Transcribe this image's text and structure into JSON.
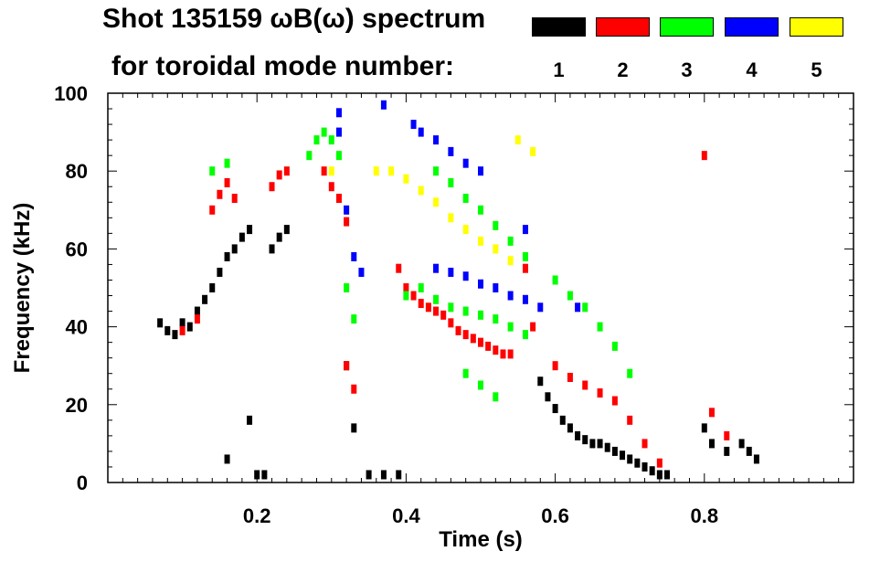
{
  "title_line1": "Shot 135159 ωB(ω) spectrum",
  "title_line2": "for toroidal mode number:",
  "legend": [
    {
      "label": "1",
      "color": "#000000"
    },
    {
      "label": "2",
      "color": "#ff0000"
    },
    {
      "label": "3",
      "color": "#00ff00"
    },
    {
      "label": "4",
      "color": "#0000ff"
    },
    {
      "label": "5",
      "color": "#ffff00"
    }
  ],
  "chart_data": {
    "type": "scatter",
    "title": "Shot 135159 ωB(ω) spectrum for toroidal mode number:",
    "xlabel": "Time (s)",
    "ylabel": "Frequency (kHz)",
    "xlim": [
      0.0,
      1.0
    ],
    "ylim": [
      0,
      100
    ],
    "xticks": [
      0.2,
      0.4,
      0.6,
      0.8
    ],
    "xtick_labels": [
      "0.2",
      "0.4",
      "0.6",
      "0.8"
    ],
    "yticks": [
      0,
      20,
      40,
      60,
      80,
      100
    ],
    "ytick_labels": [
      "0",
      "20",
      "40",
      "60",
      "80",
      "100"
    ],
    "series": [
      {
        "name": "1",
        "color": "#000000",
        "points": [
          [
            0.07,
            41
          ],
          [
            0.08,
            39
          ],
          [
            0.09,
            38
          ],
          [
            0.1,
            41
          ],
          [
            0.11,
            40
          ],
          [
            0.12,
            44
          ],
          [
            0.13,
            47
          ],
          [
            0.14,
            50
          ],
          [
            0.15,
            54
          ],
          [
            0.16,
            58
          ],
          [
            0.17,
            60
          ],
          [
            0.18,
            63
          ],
          [
            0.19,
            65
          ],
          [
            0.2,
            2
          ],
          [
            0.21,
            2
          ],
          [
            0.22,
            60
          ],
          [
            0.23,
            63
          ],
          [
            0.24,
            65
          ],
          [
            0.16,
            6
          ],
          [
            0.19,
            16
          ],
          [
            0.32,
            30
          ],
          [
            0.33,
            14
          ],
          [
            0.35,
            2
          ],
          [
            0.37,
            2
          ],
          [
            0.39,
            2
          ],
          [
            0.58,
            26
          ],
          [
            0.59,
            22
          ],
          [
            0.6,
            19
          ],
          [
            0.61,
            16
          ],
          [
            0.62,
            14
          ],
          [
            0.63,
            12
          ],
          [
            0.64,
            11
          ],
          [
            0.65,
            10
          ],
          [
            0.66,
            10
          ],
          [
            0.67,
            9
          ],
          [
            0.68,
            8
          ],
          [
            0.69,
            7
          ],
          [
            0.7,
            6
          ],
          [
            0.71,
            5
          ],
          [
            0.72,
            4
          ],
          [
            0.73,
            3
          ],
          [
            0.74,
            2
          ],
          [
            0.75,
            2
          ],
          [
            0.8,
            14
          ],
          [
            0.81,
            10
          ],
          [
            0.83,
            8
          ],
          [
            0.85,
            10
          ],
          [
            0.86,
            8
          ],
          [
            0.87,
            6
          ]
        ]
      },
      {
        "name": "2",
        "color": "#ff0000",
        "points": [
          [
            0.1,
            39
          ],
          [
            0.12,
            42
          ],
          [
            0.14,
            70
          ],
          [
            0.15,
            74
          ],
          [
            0.16,
            77
          ],
          [
            0.17,
            73
          ],
          [
            0.22,
            76
          ],
          [
            0.23,
            79
          ],
          [
            0.24,
            80
          ],
          [
            0.29,
            80
          ],
          [
            0.3,
            76
          ],
          [
            0.31,
            73
          ],
          [
            0.32,
            67
          ],
          [
            0.32,
            30
          ],
          [
            0.33,
            24
          ],
          [
            0.39,
            55
          ],
          [
            0.4,
            50
          ],
          [
            0.41,
            48
          ],
          [
            0.42,
            46
          ],
          [
            0.43,
            45
          ],
          [
            0.44,
            44
          ],
          [
            0.45,
            43
          ],
          [
            0.46,
            41
          ],
          [
            0.47,
            39
          ],
          [
            0.48,
            38
          ],
          [
            0.49,
            37
          ],
          [
            0.5,
            36
          ],
          [
            0.51,
            35
          ],
          [
            0.52,
            34
          ],
          [
            0.53,
            33
          ],
          [
            0.54,
            33
          ],
          [
            0.56,
            55
          ],
          [
            0.57,
            40
          ],
          [
            0.6,
            30
          ],
          [
            0.62,
            27
          ],
          [
            0.64,
            25
          ],
          [
            0.66,
            23
          ],
          [
            0.68,
            21
          ],
          [
            0.7,
            16
          ],
          [
            0.72,
            10
          ],
          [
            0.74,
            5
          ],
          [
            0.8,
            84
          ],
          [
            0.81,
            18
          ],
          [
            0.83,
            12
          ]
        ]
      },
      {
        "name": "3",
        "color": "#00ff00",
        "points": [
          [
            0.14,
            80
          ],
          [
            0.16,
            82
          ],
          [
            0.27,
            84
          ],
          [
            0.28,
            88
          ],
          [
            0.29,
            90
          ],
          [
            0.3,
            88
          ],
          [
            0.31,
            84
          ],
          [
            0.32,
            50
          ],
          [
            0.33,
            42
          ],
          [
            0.4,
            48
          ],
          [
            0.42,
            50
          ],
          [
            0.44,
            47
          ],
          [
            0.46,
            45
          ],
          [
            0.48,
            44
          ],
          [
            0.5,
            43
          ],
          [
            0.52,
            42
          ],
          [
            0.54,
            40
          ],
          [
            0.56,
            38
          ],
          [
            0.44,
            80
          ],
          [
            0.46,
            77
          ],
          [
            0.48,
            73
          ],
          [
            0.5,
            70
          ],
          [
            0.52,
            66
          ],
          [
            0.54,
            62
          ],
          [
            0.56,
            58
          ],
          [
            0.6,
            52
          ],
          [
            0.62,
            48
          ],
          [
            0.64,
            45
          ],
          [
            0.66,
            40
          ],
          [
            0.68,
            35
          ],
          [
            0.7,
            28
          ],
          [
            0.48,
            28
          ],
          [
            0.5,
            25
          ],
          [
            0.52,
            22
          ]
        ]
      },
      {
        "name": "4",
        "color": "#0000ff",
        "points": [
          [
            0.31,
            95
          ],
          [
            0.31,
            90
          ],
          [
            0.32,
            70
          ],
          [
            0.33,
            58
          ],
          [
            0.34,
            54
          ],
          [
            0.37,
            97
          ],
          [
            0.41,
            92
          ],
          [
            0.42,
            90
          ],
          [
            0.44,
            88
          ],
          [
            0.46,
            85
          ],
          [
            0.48,
            82
          ],
          [
            0.5,
            80
          ],
          [
            0.44,
            55
          ],
          [
            0.46,
            54
          ],
          [
            0.48,
            53
          ],
          [
            0.5,
            51
          ],
          [
            0.52,
            50
          ],
          [
            0.54,
            48
          ],
          [
            0.56,
            47
          ],
          [
            0.58,
            45
          ],
          [
            0.56,
            65
          ],
          [
            0.63,
            45
          ]
        ]
      },
      {
        "name": "5",
        "color": "#ffff00",
        "points": [
          [
            0.38,
            80
          ],
          [
            0.4,
            78
          ],
          [
            0.42,
            75
          ],
          [
            0.44,
            72
          ],
          [
            0.46,
            68
          ],
          [
            0.48,
            65
          ],
          [
            0.5,
            62
          ],
          [
            0.52,
            60
          ],
          [
            0.54,
            57
          ],
          [
            0.55,
            88
          ],
          [
            0.57,
            85
          ],
          [
            0.3,
            80
          ],
          [
            0.36,
            80
          ]
        ]
      }
    ]
  }
}
